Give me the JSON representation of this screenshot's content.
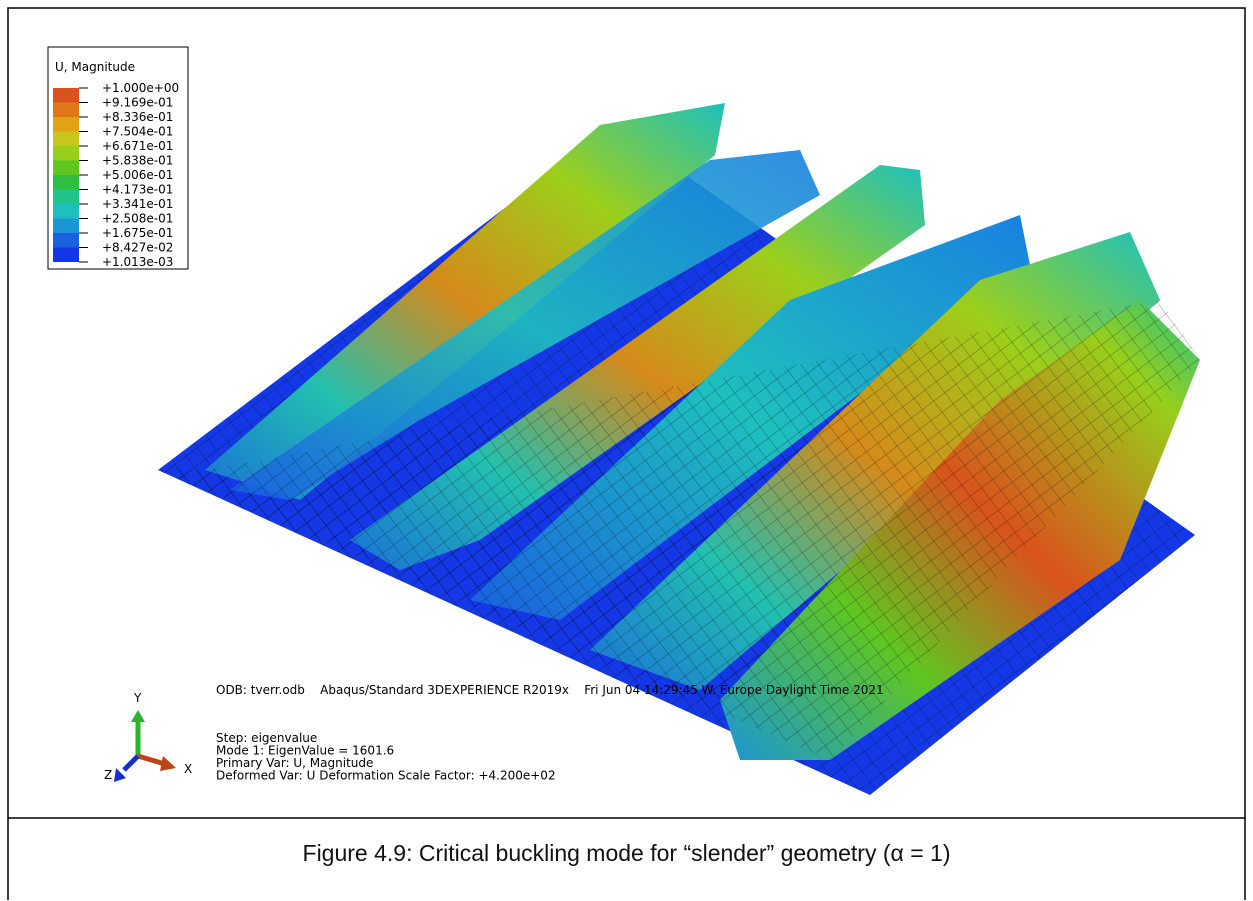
{
  "legend": {
    "title": "U, Magnitude",
    "labels": [
      "+1.000e+00",
      "+9.169e-01",
      "+8.336e-01",
      "+7.504e-01",
      "+6.671e-01",
      "+5.838e-01",
      "+5.006e-01",
      "+4.173e-01",
      "+3.341e-01",
      "+2.508e-01",
      "+1.675e-01",
      "+8.427e-02",
      "+1.013e-03"
    ],
    "colors": [
      "#d9531c",
      "#e0761a",
      "#e2a216",
      "#c9c51c",
      "#98cf1b",
      "#5fc622",
      "#2fbf3e",
      "#22c38a",
      "#1ec0bd",
      "#1a96d8",
      "#1863dd",
      "#1536e6"
    ]
  },
  "triad": {
    "y": "Y",
    "x": "X",
    "z": "Z"
  },
  "info": {
    "odb": "ODB: tverr.odb    Abaqus/Standard 3DEXPERIENCE R2019x    Fri Jun 04 14:29:45 W. Europe Daylight Time 2021",
    "lines": [
      "Step: eigenvalue",
      "Mode        1: EigenValue =   1601.6",
      "Primary Var: U, Magnitude",
      "Deformed Var: U   Deformation Scale Factor: +4.200e+02"
    ]
  },
  "caption": "Figure 4.9: Critical buckling mode for “slender” geometry (α = 1)"
}
